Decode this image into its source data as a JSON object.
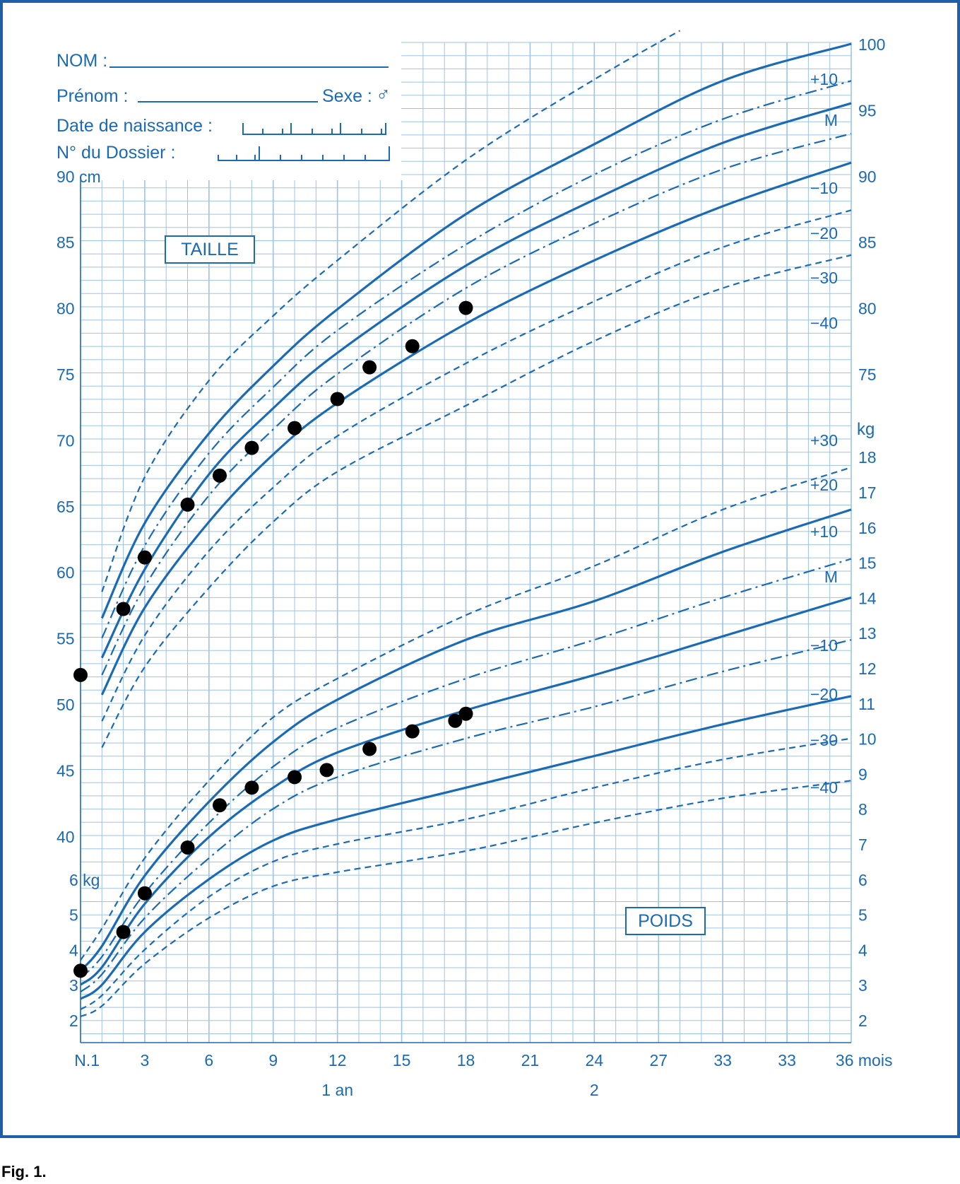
{
  "form": {
    "nom_label": "NOM :",
    "prenom_label": "Prénom :",
    "sexe_label": "Sexe :",
    "sexe_symbol": "♂",
    "date_label": "Date de naissance :",
    "dossier_label": "N° du Dossier :"
  },
  "boxes": {
    "taille": "TAILLE",
    "poids": "POIDS"
  },
  "caption": "Fig. 1.",
  "colors": {
    "line": "#1b6ab4",
    "grid": "#9dc3e6",
    "frame": "#1f5fa8",
    "dot": "#000000"
  },
  "chart_data": [
    {
      "type": "line",
      "title": "TAILLE",
      "x_unit": "mois",
      "y_unit": "cm",
      "x_range": [
        0,
        36
      ],
      "ylim": [
        40,
        100
      ],
      "left_axis": {
        "first_label": "90 cm",
        "ticks": [
          40,
          45,
          50,
          55,
          60,
          65,
          70,
          75,
          80,
          85
        ]
      },
      "right_axis": {
        "ticks": [
          75,
          80,
          85,
          90,
          95,
          100
        ]
      },
      "curve_labels": [
        "+10",
        "M",
        "−10",
        "−20",
        "−30",
        "−40"
      ],
      "curves": [
        {
          "style": "dashed",
          "points": [
            [
              1,
              58.5
            ],
            [
              3,
              67.2
            ],
            [
              6,
              74.5
            ],
            [
              9,
              79.4
            ],
            [
              12,
              83.6
            ],
            [
              18,
              91.2
            ],
            [
              24,
              97.3
            ],
            [
              28,
              101
            ]
          ]
        },
        {
          "style": "solid",
          "points": [
            [
              1,
              56.5
            ],
            [
              3,
              63.7
            ],
            [
              6,
              70.5
            ],
            [
              9,
              75.6
            ],
            [
              12,
              79.9
            ],
            [
              18,
              87.1
            ],
            [
              24,
              92.4
            ],
            [
              30,
              97.2
            ],
            [
              36,
              100
            ]
          ]
        },
        {
          "style": "dashdot",
          "points": [
            [
              1,
              55
            ],
            [
              3,
              62
            ],
            [
              6,
              69
            ],
            [
              9,
              74
            ],
            [
              12,
              78.3
            ],
            [
              18,
              84.8
            ],
            [
              24,
              90.1
            ],
            [
              30,
              94.3
            ],
            [
              36,
              97.2
            ]
          ]
        },
        {
          "style": "solid",
          "points": [
            [
              1,
              53.5
            ],
            [
              3,
              60.2
            ],
            [
              6,
              67.4
            ],
            [
              9,
              72.4
            ],
            [
              12,
              76.6
            ],
            [
              18,
              83.2
            ],
            [
              24,
              88.2
            ],
            [
              30,
              92.5
            ],
            [
              36,
              95.5
            ]
          ]
        },
        {
          "style": "dashdot",
          "points": [
            [
              1,
              52.2
            ],
            [
              3,
              58.9
            ],
            [
              6,
              65.8
            ],
            [
              9,
              70.8
            ],
            [
              12,
              75
            ],
            [
              18,
              81.5
            ],
            [
              24,
              86.4
            ],
            [
              30,
              90.5
            ],
            [
              36,
              93.2
            ]
          ]
        },
        {
          "style": "solid",
          "points": [
            [
              1,
              50.7
            ],
            [
              3,
              57.3
            ],
            [
              6,
              63.8
            ],
            [
              9,
              68.9
            ],
            [
              12,
              72.8
            ],
            [
              18,
              78.8
            ],
            [
              24,
              83.6
            ],
            [
              30,
              87.7
            ],
            [
              36,
              91
            ]
          ]
        },
        {
          "style": "dashed",
          "points": [
            [
              1,
              48.7
            ],
            [
              3,
              55.2
            ],
            [
              6,
              61.6
            ],
            [
              9,
              66.4
            ],
            [
              12,
              70.3
            ],
            [
              18,
              75.8
            ],
            [
              24,
              80.5
            ],
            [
              30,
              84.6
            ],
            [
              36,
              87.4
            ]
          ]
        },
        {
          "style": "dashed",
          "points": [
            [
              1,
              46.7
            ],
            [
              3,
              52.8
            ],
            [
              6,
              58.8
            ],
            [
              9,
              63.8
            ],
            [
              12,
              67.6
            ],
            [
              18,
              72.6
            ],
            [
              24,
              77.5
            ],
            [
              30,
              81.5
            ],
            [
              36,
              84
            ]
          ]
        }
      ],
      "points": [
        [
          0,
          52.2
        ],
        [
          2,
          57.2
        ],
        [
          3,
          61.1
        ],
        [
          5,
          65.1
        ],
        [
          6.5,
          67.3
        ],
        [
          8,
          69.4
        ],
        [
          10,
          70.9
        ],
        [
          12,
          73.1
        ],
        [
          13.5,
          75.5
        ],
        [
          15.5,
          77.1
        ],
        [
          18,
          80
        ]
      ]
    },
    {
      "type": "line",
      "title": "POIDS",
      "x_unit": "mois",
      "y_unit": "kg",
      "x_range": [
        0,
        36
      ],
      "ylim": [
        2,
        18
      ],
      "left_axis": {
        "first_label": "6 kg",
        "ticks": [
          2,
          3,
          4,
          5,
          6
        ]
      },
      "right_axis": {
        "label": "kg",
        "ticks": [
          2,
          3,
          4,
          5,
          6,
          7,
          8,
          9,
          10,
          11,
          12,
          13,
          14,
          15,
          16,
          17,
          18
        ]
      },
      "curve_labels": [
        "+30",
        "+20",
        "+10",
        "M",
        "−10",
        "−20",
        "−30",
        "−40"
      ],
      "curves": [
        {
          "style": "dashed",
          "points": [
            [
              0,
              3.7
            ],
            [
              1,
              4.6
            ],
            [
              3,
              6.6
            ],
            [
              6,
              8.8
            ],
            [
              9,
              10.6
            ],
            [
              12,
              11.7
            ],
            [
              18,
              13.5
            ],
            [
              24,
              14.9
            ],
            [
              30,
              16.5
            ],
            [
              36,
              17.7
            ]
          ]
        },
        {
          "style": "solid",
          "points": [
            [
              0,
              3.4
            ],
            [
              1,
              4.1
            ],
            [
              3,
              6.1
            ],
            [
              6,
              8.2
            ],
            [
              9,
              9.9
            ],
            [
              12,
              11.1
            ],
            [
              18,
              12.8
            ],
            [
              24,
              13.9
            ],
            [
              30,
              15.3
            ],
            [
              36,
              16.5
            ]
          ]
        },
        {
          "style": "dashdot",
          "points": [
            [
              0,
              3.2
            ],
            [
              1,
              3.8
            ],
            [
              3,
              5.6
            ],
            [
              6,
              7.6
            ],
            [
              9,
              9.2
            ],
            [
              12,
              10.3
            ],
            [
              18,
              11.7
            ],
            [
              24,
              12.8
            ],
            [
              30,
              14
            ],
            [
              36,
              15.1
            ]
          ]
        },
        {
          "style": "solid",
          "points": [
            [
              0,
              3
            ],
            [
              1,
              3.5
            ],
            [
              3,
              5.3
            ],
            [
              6,
              7.2
            ],
            [
              9,
              8.6
            ],
            [
              12,
              9.6
            ],
            [
              18,
              10.8
            ],
            [
              24,
              11.8
            ],
            [
              30,
              12.9
            ],
            [
              36,
              14
            ]
          ]
        },
        {
          "style": "dashdot",
          "points": [
            [
              0,
              2.8
            ],
            [
              1,
              3.3
            ],
            [
              3,
              4.9
            ],
            [
              6,
              6.6
            ],
            [
              9,
              8
            ],
            [
              12,
              8.9
            ],
            [
              18,
              10
            ],
            [
              24,
              10.9
            ],
            [
              30,
              11.9
            ],
            [
              36,
              12.8
            ]
          ]
        },
        {
          "style": "solid",
          "points": [
            [
              0,
              2.6
            ],
            [
              1,
              3
            ],
            [
              3,
              4.5
            ],
            [
              6,
              6
            ],
            [
              9,
              7.1
            ],
            [
              12,
              7.7
            ],
            [
              18,
              8.6
            ],
            [
              24,
              9.5
            ],
            [
              30,
              10.4
            ],
            [
              36,
              11.2
            ]
          ]
        },
        {
          "style": "dashed",
          "points": [
            [
              0,
              2.3
            ],
            [
              1,
              2.7
            ],
            [
              3,
              4
            ],
            [
              6,
              5.5
            ],
            [
              9,
              6.5
            ],
            [
              12,
              7
            ],
            [
              18,
              7.7
            ],
            [
              24,
              8.6
            ],
            [
              30,
              9.4
            ],
            [
              36,
              10
            ]
          ]
        },
        {
          "style": "dashed",
          "points": [
            [
              0,
              2.1
            ],
            [
              1,
              2.4
            ],
            [
              3,
              3.6
            ],
            [
              6,
              4.9
            ],
            [
              9,
              5.8
            ],
            [
              12,
              6.2
            ],
            [
              18,
              6.8
            ],
            [
              24,
              7.6
            ],
            [
              30,
              8.3
            ],
            [
              36,
              8.8
            ]
          ]
        }
      ],
      "points": [
        [
          0,
          3.4
        ],
        [
          2,
          4.5
        ],
        [
          3,
          5.6
        ],
        [
          5,
          6.9
        ],
        [
          6.5,
          8.1
        ],
        [
          8,
          8.6
        ],
        [
          10,
          8.9
        ],
        [
          11.5,
          9.1
        ],
        [
          13.5,
          9.7
        ],
        [
          15.5,
          10.2
        ],
        [
          17.5,
          10.5
        ],
        [
          18,
          10.7
        ]
      ]
    }
  ],
  "x_axis": {
    "tick_labels": [
      "N.1",
      "3",
      "6",
      "9",
      "12",
      "15",
      "18",
      "21",
      "24",
      "27",
      "33",
      "33",
      "36 mois"
    ],
    "year_labels": [
      "1 an",
      "2"
    ]
  }
}
